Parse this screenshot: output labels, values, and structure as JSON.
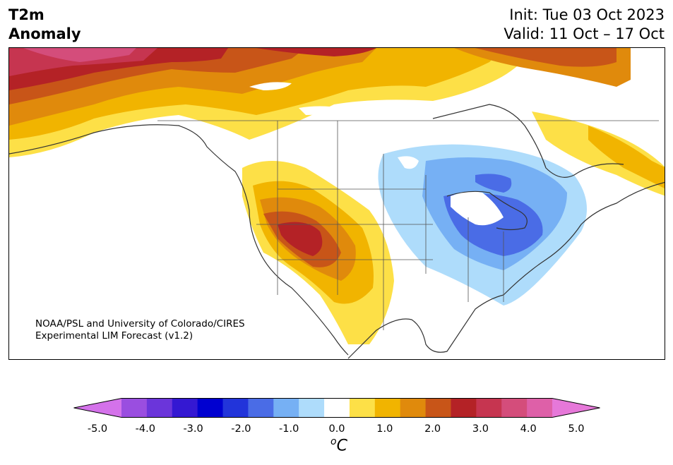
{
  "header": {
    "title_line1": "T2m",
    "title_line2": "Anomaly",
    "init": "Init: Tue 03 Oct 2023",
    "valid": "Valid: 11 Oct – 17 Oct"
  },
  "credit": {
    "line1": "NOAA/PSL and University of Colorado/CIRES",
    "line2": "Experimental LIM Forecast (v1.2)"
  },
  "colorbar": {
    "levels": [
      -5.0,
      -4.5,
      -4.0,
      -3.5,
      -3.0,
      -2.5,
      -2.0,
      -1.5,
      -1.0,
      -0.5,
      0.5,
      1.0,
      1.5,
      2.0,
      2.5,
      3.0,
      3.5,
      4.0,
      4.5,
      5.0
    ],
    "colors": [
      "#d472ea",
      "#9a4ee0",
      "#6b35da",
      "#3418d2",
      "#0000d0",
      "#2234da",
      "#4a6ce6",
      "#76b0f4",
      "#aedcfb",
      "#ffffff",
      "#fde047",
      "#f1b400",
      "#e08a0c",
      "#c85518",
      "#b42226",
      "#c63550",
      "#d44d7b",
      "#de60a8",
      "#e678d9"
    ],
    "tick_labels": [
      "-5.0",
      "-4.0",
      "-3.0",
      "-2.0",
      "-1.0",
      "0.0",
      "1.0",
      "2.0",
      "3.0",
      "4.0",
      "5.0"
    ],
    "unit_sup": "o",
    "unit": "C"
  }
}
